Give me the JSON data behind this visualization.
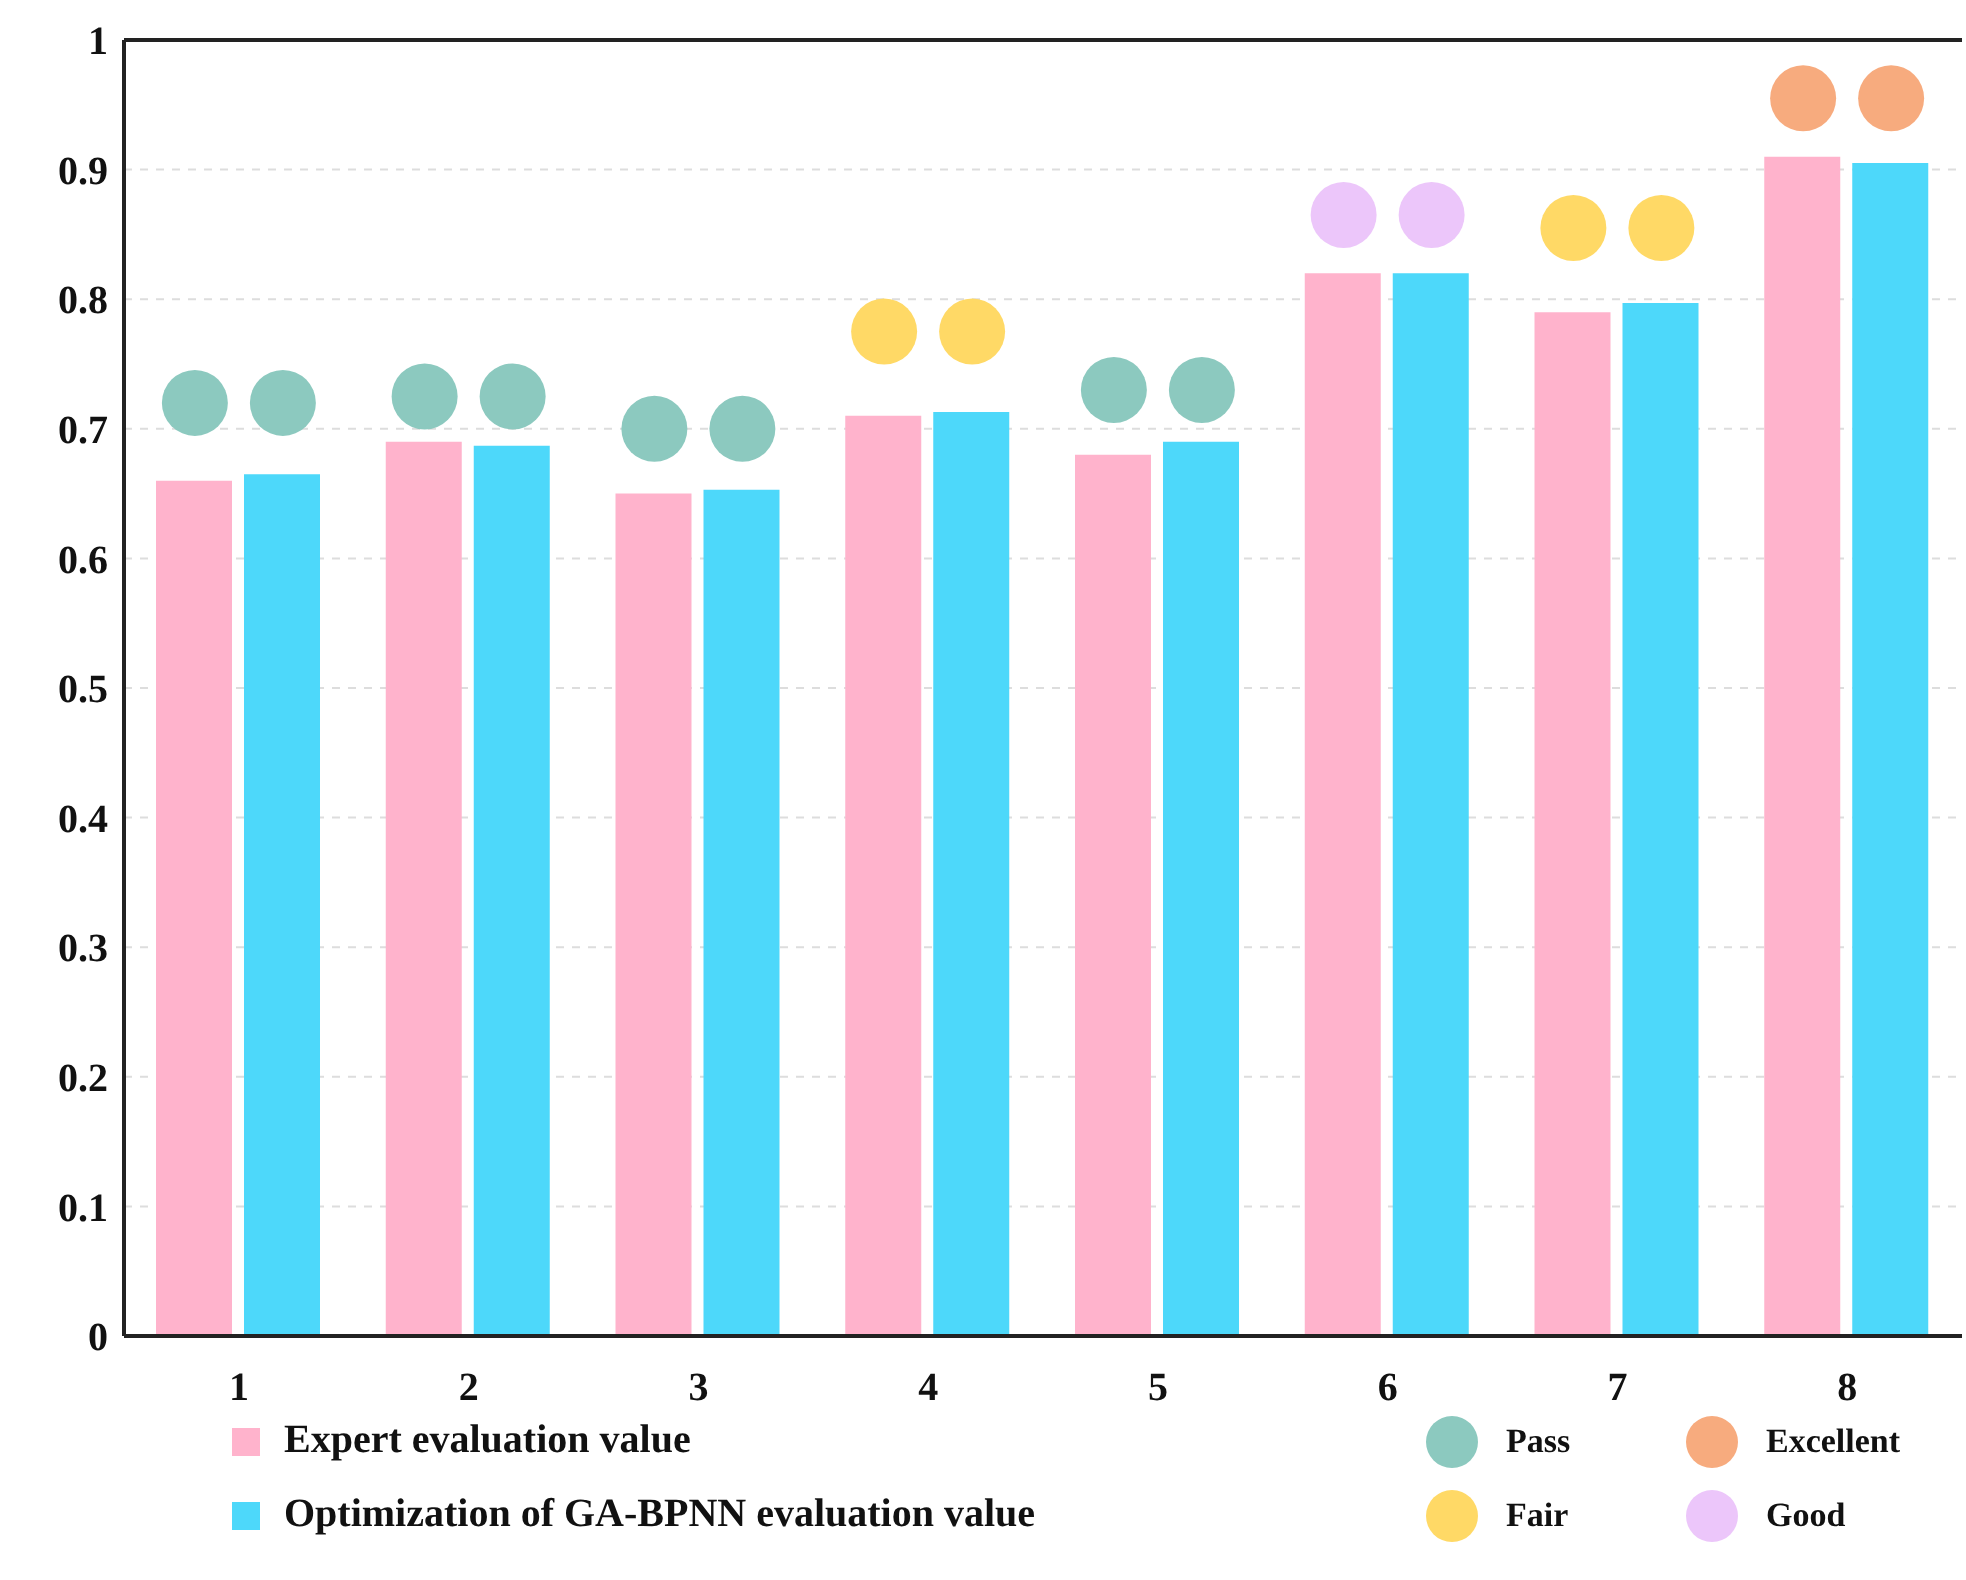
{
  "chart_data": {
    "type": "bar",
    "categories": [
      "1",
      "2",
      "3",
      "4",
      "5",
      "6",
      "7",
      "8"
    ],
    "series": [
      {
        "name": "Expert evaluation value",
        "color": "#ffb3cc",
        "values": [
          0.66,
          0.69,
          0.65,
          0.71,
          0.68,
          0.82,
          0.79,
          0.91
        ]
      },
      {
        "name": "Optimization of GA-BPNN evaluation value",
        "color": "#4dd8fa",
        "values": [
          0.665,
          0.687,
          0.653,
          0.713,
          0.69,
          0.82,
          0.797,
          0.905
        ]
      },
      {
        "name": "Pass",
        "type": "scatter",
        "color": "#8cc9bf",
        "x": [
          "1",
          "1",
          "2",
          "2",
          "3",
          "3",
          "5",
          "5"
        ],
        "values": [
          0.72,
          0.72,
          0.725,
          0.725,
          0.7,
          0.7,
          0.73,
          0.73
        ]
      },
      {
        "name": "Excellent",
        "type": "scatter",
        "color": "#f7ab7e",
        "x": [
          "8",
          "8"
        ],
        "values": [
          0.955,
          0.955
        ]
      },
      {
        "name": "Fair",
        "type": "scatter",
        "color": "#ffd966",
        "x": [
          "4",
          "4",
          "7",
          "7"
        ],
        "values": [
          0.775,
          0.775,
          0.855,
          0.855
        ]
      },
      {
        "name": "Good",
        "type": "scatter",
        "color": "#ecc6fa",
        "x": [
          "6",
          "6"
        ],
        "values": [
          0.865,
          0.865
        ]
      }
    ],
    "ylim": [
      0,
      1
    ],
    "yticks": [
      0,
      0.1,
      0.2,
      0.3,
      0.4,
      0.5,
      0.6,
      0.7,
      0.8,
      0.9,
      1
    ],
    "grid": "y",
    "legend": "bottom",
    "marker": "circle"
  }
}
